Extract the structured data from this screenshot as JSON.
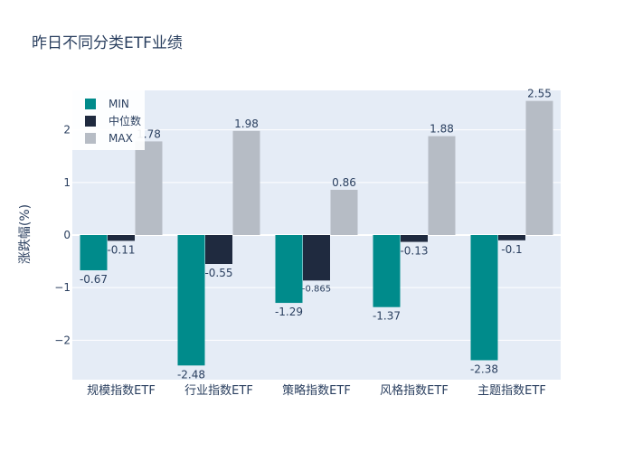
{
  "chart_data": {
    "type": "bar",
    "title": "昨日不同分类ETF业绩",
    "xlabel": "",
    "ylabel": "涨跌幅(%)",
    "categories": [
      "规模指数ETF",
      "行业指数ETF",
      "策略指数ETF",
      "风格指数ETF",
      "主题指数ETF"
    ],
    "series": [
      {
        "name": "MIN",
        "color": "#008b8b",
        "values": [
          -0.67,
          -2.48,
          -1.29,
          -1.37,
          -2.38
        ],
        "labels": [
          "-0.67",
          "-2.48",
          "-1.29",
          "-1.37",
          "-2.38"
        ]
      },
      {
        "name": "中位数",
        "color": "#1f2a3f",
        "values": [
          -0.11,
          -0.55,
          -0.865,
          -0.13,
          -0.1
        ],
        "labels": [
          "-0.11",
          "-0.55",
          "-0.865",
          "-0.13",
          "-0.1"
        ]
      },
      {
        "name": "MAX",
        "color": "#b6bcc5",
        "values": [
          1.78,
          1.98,
          0.86,
          1.88,
          2.55
        ],
        "labels": [
          "1.78",
          "1.98",
          "0.86",
          "1.88",
          "2.55"
        ]
      }
    ],
    "ylim": [
      -2.75,
      2.75
    ],
    "yticks": [
      -2,
      -1,
      0,
      1,
      2
    ],
    "ytick_labels": [
      "−2",
      "−1",
      "0",
      "1",
      "2"
    ],
    "grid": true,
    "legend_position": "top-left",
    "plot_bg": "#e5ecf6"
  }
}
